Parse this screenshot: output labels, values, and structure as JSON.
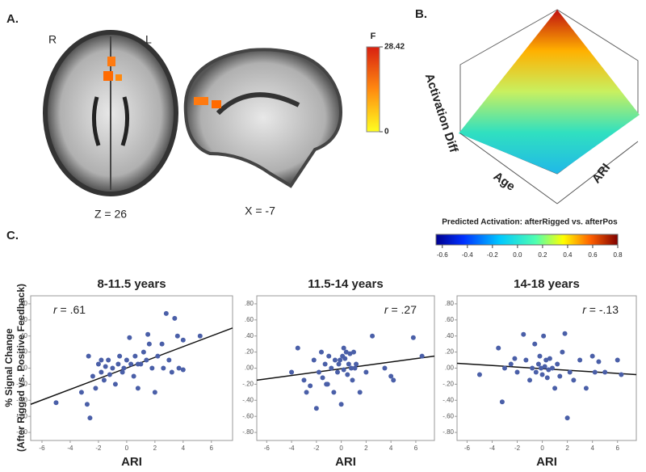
{
  "panel_a": {
    "label": "A.",
    "left_side": "R",
    "right_side": "L",
    "axial_caption": "Z = 26",
    "sagittal_caption": "X = -7",
    "colorbar": {
      "title": "F",
      "lim": [
        0,
        28.42
      ],
      "ticks": [
        0,
        28.42
      ]
    }
  },
  "panel_b": {
    "label": "B.",
    "z_label": "Activation Diff",
    "x_label": "Age",
    "y_label": "ARI",
    "colorbar": {
      "title": "Predicted Activation: afterRigged vs. afterPos",
      "lim": [
        -0.65,
        0.8
      ],
      "ticks": [
        -0.6,
        -0.4,
        -0.2,
        {
          "value": 0,
          "label": "0.0"
        },
        0.2,
        0.4,
        0.6,
        0.8
      ]
    }
  },
  "panel_c": {
    "label": "C.",
    "ylabel_lines": [
      "% Signal Change",
      "(After Rigged vs. Positive Feedback)"
    ]
  },
  "chart_data": [
    {
      "type": "scatter",
      "title": "8-11.5 years",
      "xlabel": "ARI",
      "color": "#4a5fa8",
      "annotation_corner": "top-left",
      "annotation": {
        "symbol": "r",
        "text": " = .61"
      },
      "xlim": [
        -6.8,
        7.5
      ],
      "ylim": [
        -0.9,
        0.9
      ],
      "xticks": [
        -6,
        -4,
        -2,
        0,
        2,
        4,
        6
      ],
      "yticks": [
        {
          "value": 0.8,
          "label": ".80"
        },
        {
          "value": 0.6,
          "label": ".60"
        },
        {
          "value": 0.4,
          "label": ".40"
        },
        {
          "value": 0.2,
          "label": ".20"
        },
        {
          "value": 0,
          "label": ".00"
        },
        {
          "value": -0.2,
          "label": "-.20"
        },
        {
          "value": -0.4,
          "label": "-.40"
        },
        {
          "value": -0.6,
          "label": "-.60"
        },
        {
          "value": -0.8,
          "label": "-.80"
        }
      ],
      "x": [
        -5,
        -3.2,
        -2.8,
        -2.6,
        -2.7,
        -2.4,
        -2.2,
        -2,
        -1.8,
        -1.6,
        -1.5,
        -1.3,
        -1.2,
        -1,
        -0.8,
        -0.6,
        -0.5,
        -0.3,
        -0.2,
        0,
        0.2,
        0.3,
        0.5,
        0.6,
        0.8,
        1,
        1.2,
        1.4,
        1.6,
        1.8,
        2,
        2.2,
        2.5,
        2.8,
        3,
        3.2,
        3.4,
        3.6,
        3.7,
        4,
        4,
        5.2,
        1.5,
        -1.8,
        0.8,
        2.6
      ],
      "y": [
        -0.43,
        -0.3,
        -0.45,
        -0.62,
        0.15,
        -0.1,
        -0.25,
        0.05,
        -0.05,
        -0.15,
        0.02,
        0.1,
        -0.08,
        0,
        -0.2,
        0.05,
        0.15,
        -0.05,
        0,
        0.1,
        0.38,
        0.05,
        -0.1,
        0.15,
        -0.25,
        0.05,
        0.2,
        0.1,
        0.3,
        0,
        -0.3,
        0.15,
        0.3,
        0.68,
        0.1,
        -0.05,
        0.62,
        0.4,
        0,
        -0.02,
        0.35,
        0.4,
        0.42,
        0.1,
        0.05,
        0
      ],
      "fit": {
        "x": [
          -6.8,
          7.5
        ],
        "y": [
          -0.45,
          0.5
        ]
      }
    },
    {
      "type": "scatter",
      "title": "11.5-14 years",
      "xlabel": "ARI",
      "color": "#4a5fa8",
      "annotation_corner": "top-right",
      "annotation": {
        "symbol": "r",
        "text": " = .27"
      },
      "xlim": [
        -6.8,
        7.5
      ],
      "ylim": [
        -0.9,
        0.9
      ],
      "xticks": [
        -6,
        -4,
        -2,
        0,
        2,
        4,
        6
      ],
      "yticks": [
        {
          "value": 0.8,
          "label": ".80"
        },
        {
          "value": 0.6,
          "label": ".60"
        },
        {
          "value": 0.4,
          "label": ".40"
        },
        {
          "value": 0.2,
          "label": ".20"
        },
        {
          "value": 0,
          "label": ".00"
        },
        {
          "value": -0.2,
          "label": "-.20"
        },
        {
          "value": -0.4,
          "label": "-.40"
        },
        {
          "value": -0.6,
          "label": "-.60"
        },
        {
          "value": -0.8,
          "label": "-.80"
        }
      ],
      "x": [
        -4,
        -3.5,
        -3,
        -2.8,
        -2.5,
        -2.2,
        -2,
        -1.8,
        -1.6,
        -1.5,
        -1.3,
        -1.1,
        -1,
        -0.8,
        -0.6,
        -0.5,
        -0.3,
        -0.2,
        0,
        0.1,
        0.2,
        0.3,
        0.4,
        0.5,
        0.6,
        0.7,
        0.8,
        0.9,
        1,
        1.2,
        1.5,
        -0.1,
        2.5,
        2,
        3.5,
        4,
        4.2,
        5.8,
        6.5,
        -1.2,
        0.2,
        1.1
      ],
      "y": [
        -0.05,
        0.25,
        -0.15,
        -0.3,
        -0.22,
        0.1,
        -0.5,
        -0.05,
        0.2,
        -0.12,
        0.05,
        -0.2,
        0.15,
        0,
        -0.3,
        0.1,
        -0.05,
        0.05,
        -0.45,
        0.15,
        -0.02,
        0.12,
        0.2,
        -0.08,
        0.05,
        0.18,
        0,
        -0.15,
        0.2,
        0.05,
        -0.3,
        0.1,
        0.4,
        -0.05,
        0,
        -0.1,
        -0.15,
        0.38,
        0.15,
        -0.2,
        0.25,
        0
      ],
      "fit": {
        "x": [
          -6.8,
          7.5
        ],
        "y": [
          -0.15,
          0.15
        ]
      }
    },
    {
      "type": "scatter",
      "title": "14-18 years",
      "xlabel": "ARI",
      "color": "#4a5fa8",
      "annotation_corner": "top-right",
      "annotation": {
        "symbol": "r",
        "text": " = -.13"
      },
      "xlim": [
        -6.8,
        7.5
      ],
      "ylim": [
        -0.9,
        0.9
      ],
      "xticks": [
        -6,
        -4,
        -2,
        0,
        2,
        4,
        6
      ],
      "yticks": [
        {
          "value": 0.8,
          "label": ".80"
        },
        {
          "value": 0.6,
          "label": ".60"
        },
        {
          "value": 0.4,
          "label": ".40"
        },
        {
          "value": 0.2,
          "label": ".20"
        },
        {
          "value": 0,
          "label": ".00"
        },
        {
          "value": -0.2,
          "label": "-.20"
        },
        {
          "value": -0.4,
          "label": "-.40"
        },
        {
          "value": -0.6,
          "label": "-.60"
        },
        {
          "value": -0.8,
          "label": "-.80"
        }
      ],
      "x": [
        -5,
        -3.5,
        -3.2,
        -3,
        -2.5,
        -2,
        -1.5,
        -1.3,
        -1,
        -0.8,
        -0.6,
        -0.5,
        -0.3,
        -0.2,
        0,
        0.1,
        0.2,
        0.3,
        0.5,
        0.6,
        0.8,
        1,
        1.2,
        1.4,
        1.6,
        1.8,
        2,
        2.2,
        2.5,
        3,
        3.5,
        4,
        4.2,
        4.5,
        5,
        6,
        6.3,
        -0.1,
        0.4,
        -2.2
      ],
      "y": [
        -0.08,
        0.25,
        -0.42,
        0,
        0.05,
        -0.05,
        0.42,
        0.1,
        -0.15,
        0,
        0.3,
        -0.05,
        0.05,
        0.15,
        -0.08,
        0.4,
        0.02,
        0.1,
        -0.02,
        0.12,
        0,
        -0.25,
        0.05,
        -0.1,
        0.2,
        0.43,
        -0.62,
        -0.05,
        -0.15,
        0.1,
        -0.25,
        0.15,
        -0.05,
        0.08,
        -0.05,
        0.1,
        -0.08,
        0,
        -0.12,
        0.12
      ],
      "fit": {
        "x": [
          -6.8,
          7.5
        ],
        "y": [
          0.06,
          -0.08
        ]
      }
    }
  ]
}
